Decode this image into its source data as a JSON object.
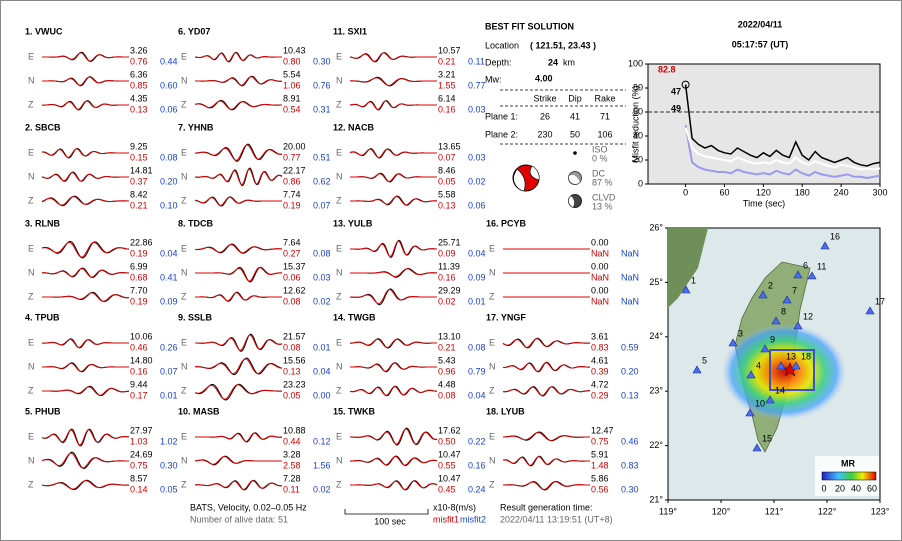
{
  "header": {
    "date": "2022/04/11",
    "time": "05:17:57  (UT)"
  },
  "stations": [
    {
      "label": "1.  VWUC",
      "components": [
        {
          "comp": "E",
          "amp": "3.26",
          "misfit1": "0.76",
          "misfit2": "0.44"
        },
        {
          "comp": "N",
          "amp": "6.36",
          "misfit1": "0.85",
          "misfit2": "0.60"
        },
        {
          "comp": "Z",
          "amp": "4.35",
          "misfit1": "0.13",
          "misfit2": "0.06"
        }
      ]
    },
    {
      "label": "2.  SBCB",
      "components": [
        {
          "comp": "E",
          "amp": "9.25",
          "misfit1": "0.15",
          "misfit2": "0.08"
        },
        {
          "comp": "N",
          "amp": "14.81",
          "misfit1": "0.37",
          "misfit2": "0.20"
        },
        {
          "comp": "Z",
          "amp": "8.42",
          "misfit1": "0.21",
          "misfit2": "0.10"
        }
      ]
    },
    {
      "label": "3.  RLNB",
      "components": [
        {
          "comp": "E",
          "amp": "22.86",
          "misfit1": "0.19",
          "misfit2": "0.04"
        },
        {
          "comp": "N",
          "amp": "6.99",
          "misfit1": "0.68",
          "misfit2": "0.41"
        },
        {
          "comp": "Z",
          "amp": "7.70",
          "misfit1": "0.19",
          "misfit2": "0.09"
        }
      ]
    },
    {
      "label": "4.  TPUB",
      "components": [
        {
          "comp": "E",
          "amp": "10.06",
          "misfit1": "0.46",
          "misfit2": "0.26"
        },
        {
          "comp": "N",
          "amp": "14.80",
          "misfit1": "0.16",
          "misfit2": "0.07"
        },
        {
          "comp": "Z",
          "amp": "9.44",
          "misfit1": "0.17",
          "misfit2": "0.01"
        }
      ]
    },
    {
      "label": "5.  PHUB",
      "components": [
        {
          "comp": "E",
          "amp": "27.97",
          "misfit1": "1.03",
          "misfit2": "1.02"
        },
        {
          "comp": "N",
          "amp": "24.69",
          "misfit1": "0.75",
          "misfit2": "0.30"
        },
        {
          "comp": "Z",
          "amp": "8.57",
          "misfit1": "0.14",
          "misfit2": "0.05"
        }
      ]
    },
    {
      "label": "6.  YD07",
      "components": [
        {
          "comp": "E",
          "amp": "10.43",
          "misfit1": "0.80",
          "misfit2": "0.30"
        },
        {
          "comp": "N",
          "amp": "5.54",
          "misfit1": "1.06",
          "misfit2": "0.76"
        },
        {
          "comp": "Z",
          "amp": "8.91",
          "misfit1": "0.54",
          "misfit2": "0.31"
        }
      ]
    },
    {
      "label": "7.  YHNB",
      "components": [
        {
          "comp": "E",
          "amp": "20.00",
          "misfit1": "0.77",
          "misfit2": "0.51"
        },
        {
          "comp": "N",
          "amp": "22.17",
          "misfit1": "0.86",
          "misfit2": "0.62"
        },
        {
          "comp": "Z",
          "amp": "7.74",
          "misfit1": "0.19",
          "misfit2": "0.07"
        }
      ]
    },
    {
      "label": "8.  TDCB",
      "components": [
        {
          "comp": "E",
          "amp": "7.64",
          "misfit1": "0.27",
          "misfit2": "0.08"
        },
        {
          "comp": "N",
          "amp": "15.37",
          "misfit1": "0.06",
          "misfit2": "0.03"
        },
        {
          "comp": "Z",
          "amp": "12.62",
          "misfit1": "0.08",
          "misfit2": "0.02"
        }
      ]
    },
    {
      "label": "9.  SSLB",
      "components": [
        {
          "comp": "E",
          "amp": "21.57",
          "misfit1": "0.08",
          "misfit2": "0.01"
        },
        {
          "comp": "N",
          "amp": "15.56",
          "misfit1": "0.13",
          "misfit2": "0.04"
        },
        {
          "comp": "Z",
          "amp": "23.23",
          "misfit1": "0.05",
          "misfit2": "0.00"
        }
      ]
    },
    {
      "label": "10. MASB",
      "components": [
        {
          "comp": "E",
          "amp": "10.88",
          "misfit1": "0.44",
          "misfit2": "0.12"
        },
        {
          "comp": "N",
          "amp": "3.28",
          "misfit1": "2.58",
          "misfit2": "1.56"
        },
        {
          "comp": "Z",
          "amp": "7.28",
          "misfit1": "0.11",
          "misfit2": "0.02"
        }
      ]
    },
    {
      "label": "11. SXI1",
      "components": [
        {
          "comp": "E",
          "amp": "10.57",
          "misfit1": "0.21",
          "misfit2": "0.11"
        },
        {
          "comp": "N",
          "amp": "3.21",
          "misfit1": "1.55",
          "misfit2": "0.77"
        },
        {
          "comp": "Z",
          "amp": "6.14",
          "misfit1": "0.16",
          "misfit2": "0.03"
        }
      ]
    },
    {
      "label": "12. NACB",
      "components": [
        {
          "comp": "E",
          "amp": "13.65",
          "misfit1": "0.07",
          "misfit2": "0.03"
        },
        {
          "comp": "N",
          "amp": "8.46",
          "misfit1": "0.05",
          "misfit2": "0.02"
        },
        {
          "comp": "Z",
          "amp": "5.58",
          "misfit1": "0.13",
          "misfit2": "0.06"
        }
      ]
    },
    {
      "label": "13. YULB",
      "components": [
        {
          "comp": "E",
          "amp": "25.71",
          "misfit1": "0.09",
          "misfit2": "0.04"
        },
        {
          "comp": "N",
          "amp": "11.39",
          "misfit1": "0.16",
          "misfit2": "0.09"
        },
        {
          "comp": "Z",
          "amp": "29.29",
          "misfit1": "0.02",
          "misfit2": "0.01"
        }
      ]
    },
    {
      "label": "14. TWGB",
      "components": [
        {
          "comp": "E",
          "amp": "13.10",
          "misfit1": "0.21",
          "misfit2": "0.08"
        },
        {
          "comp": "N",
          "amp": "5.43",
          "misfit1": "0.96",
          "misfit2": "0.79"
        },
        {
          "comp": "Z",
          "amp": "4.48",
          "misfit1": "0.08",
          "misfit2": "0.04"
        }
      ]
    },
    {
      "label": "15. TWKB",
      "components": [
        {
          "comp": "E",
          "amp": "17.62",
          "misfit1": "0.50",
          "misfit2": "0.22"
        },
        {
          "comp": "N",
          "amp": "10.47",
          "misfit1": "0.55",
          "misfit2": "0.16"
        },
        {
          "comp": "Z",
          "amp": "10.47",
          "misfit1": "0.45",
          "misfit2": "0.24"
        }
      ]
    },
    {
      "label": "16. PCYB",
      "components": [
        {
          "comp": "E",
          "amp": "0.00",
          "misfit1": "NaN",
          "misfit2": "NaN"
        },
        {
          "comp": "N",
          "amp": "0.00",
          "misfit1": "NaN",
          "misfit2": "NaN"
        },
        {
          "comp": "Z",
          "amp": "0.00",
          "misfit1": "NaN",
          "misfit2": "NaN"
        }
      ]
    },
    {
      "label": "17. YNGF",
      "components": [
        {
          "comp": "E",
          "amp": "3.61",
          "misfit1": "0.83",
          "misfit2": "0.59"
        },
        {
          "comp": "N",
          "amp": "4.61",
          "misfit1": "0.39",
          "misfit2": "0.20"
        },
        {
          "comp": "Z",
          "amp": "4.72",
          "misfit1": "0.29",
          "misfit2": "0.13"
        }
      ]
    },
    {
      "label": "18. LYUB",
      "components": [
        {
          "comp": "E",
          "amp": "12.47",
          "misfit1": "0.75",
          "misfit2": "0.46"
        },
        {
          "comp": "N",
          "amp": "5.91",
          "misfit1": "1.48",
          "misfit2": "0.83"
        },
        {
          "comp": "Z",
          "amp": "5.86",
          "misfit1": "0.56",
          "misfit2": "0.30"
        }
      ]
    }
  ],
  "solution": {
    "title": "BEST FIT SOLUTION",
    "location_label": "Location",
    "location": "( 121.51, 23.43 )",
    "depth_label": "Depth:",
    "depth": "24",
    "depth_unit": "km",
    "mw_label": "Mw:",
    "mw": "4.00",
    "columns": [
      "Strike",
      "Dip",
      "Rake"
    ],
    "planes": [
      {
        "label": "Plane 1:",
        "values": [
          "26",
          "41",
          "71"
        ]
      },
      {
        "label": "Plane 2:",
        "values": [
          "230",
          "50",
          "106"
        ]
      }
    ],
    "components": [
      {
        "name": "ISO",
        "percent": "0 %"
      },
      {
        "name": "DC",
        "percent": "87 %"
      },
      {
        "name": "CLVD",
        "percent": "13 %"
      }
    ]
  },
  "footer": {
    "filter": "BATS, Velocity, 0.02–0.05 Hz",
    "alive": "Number of alive data: 51",
    "scale": "100 sec",
    "units": "x10-8(m/s)",
    "misfit1": "misfit1",
    "misfit2": "misfit2",
    "result_label": "Result generation time:",
    "result_time": "2022/04/11 13:19:51 (UT+8)"
  },
  "chart_data": {
    "type": "line",
    "xlabel": "Time (sec)",
    "ylabel": "Misfit reduction (%)",
    "xlim": [
      -58,
      300
    ],
    "ylim": [
      0,
      100
    ],
    "xticks": [
      0,
      60,
      120,
      180,
      240,
      300
    ],
    "yticks": [
      0,
      20,
      40,
      60,
      80,
      100
    ],
    "reference_line": 60,
    "annotations": [
      "82.8",
      "47",
      "49"
    ],
    "x": [
      0,
      10,
      20,
      30,
      40,
      50,
      60,
      70,
      80,
      90,
      100,
      110,
      120,
      130,
      140,
      150,
      160,
      170,
      180,
      190,
      200,
      210,
      220,
      230,
      240,
      250,
      260,
      270,
      280,
      290,
      300
    ],
    "series": [
      {
        "color": "#000000",
        "values": [
          82.8,
          38,
          33,
          30,
          32,
          28,
          26,
          25,
          30,
          27,
          24,
          22,
          26,
          23,
          28,
          24,
          22,
          35,
          24,
          20,
          27,
          22,
          20,
          18,
          20,
          22,
          18,
          16,
          15,
          17,
          18
        ]
      },
      {
        "color": "#ffffff",
        "values": [
          47,
          30,
          25,
          23,
          22,
          21,
          20,
          19,
          22,
          20,
          18,
          17,
          18,
          17,
          20,
          18,
          17,
          22,
          18,
          16,
          19,
          17,
          15,
          14,
          16,
          15,
          14,
          12,
          13,
          12,
          13
        ]
      },
      {
        "color": "#9a9af0",
        "values": [
          49,
          18,
          14,
          12,
          11,
          10,
          10,
          9,
          12,
          10,
          9,
          8,
          9,
          8,
          11,
          9,
          8,
          12,
          9,
          7,
          10,
          8,
          7,
          6,
          7,
          8,
          6,
          6,
          5,
          6,
          7
        ]
      }
    ]
  },
  "map": {
    "lon_ticks": [
      {
        "value": 119,
        "label": "119°"
      },
      {
        "value": 120,
        "label": "120°"
      },
      {
        "value": 121,
        "label": "121°"
      },
      {
        "value": 122,
        "label": "122°"
      },
      {
        "value": 123,
        "label": "123°"
      }
    ],
    "lat_ticks": [
      {
        "value": 21,
        "label": "21°"
      },
      {
        "value": 22,
        "label": "22°"
      },
      {
        "value": 23,
        "label": "23°"
      },
      {
        "value": 24,
        "label": "24°"
      },
      {
        "value": 25,
        "label": "25°"
      },
      {
        "value": 26,
        "label": "26°"
      }
    ],
    "stations": [
      "1",
      "2",
      "3",
      "4",
      "5",
      "6",
      "7",
      "8",
      "9",
      "10",
      "11",
      "12",
      "13",
      "14",
      "15",
      "16",
      "17",
      "18"
    ],
    "colorbar_title": "MR",
    "colorbar_labels": [
      "0",
      "20",
      "40",
      "60"
    ]
  }
}
